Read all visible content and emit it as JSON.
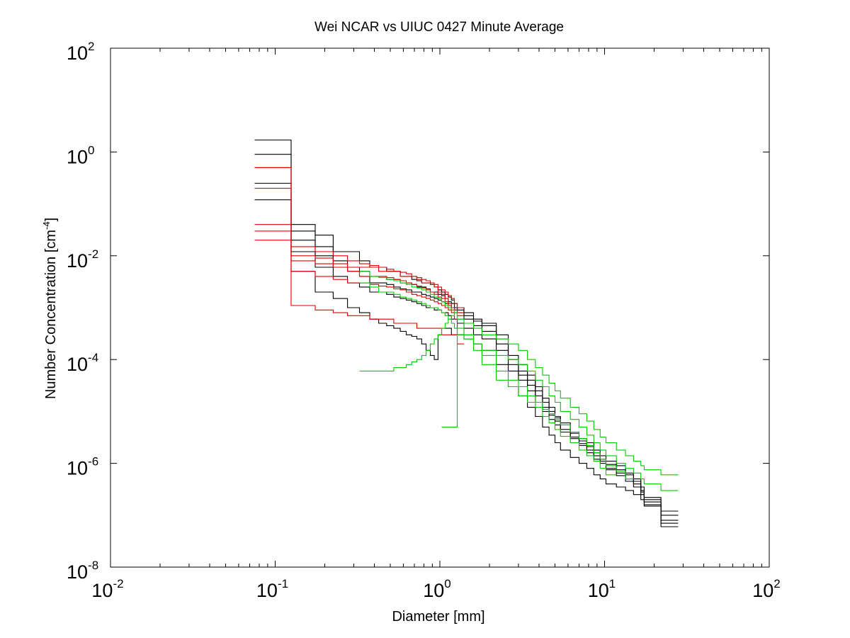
{
  "chart_data": {
    "type": "line",
    "style": "stairs",
    "title": "Wei NCAR vs UIUC 0427 Minute Average",
    "xlabel": "Diameter [mm]",
    "ylabel_base": "Number Concentration [cm",
    "ylabel_exp": "-4",
    "ylabel_end": "]",
    "x_scale": "log",
    "y_scale": "log",
    "xlim": [
      0.01,
      100
    ],
    "ylim": [
      1e-08,
      100
    ],
    "grid": false,
    "x_ticks": [
      {
        "base": "10",
        "exp": "-2"
      },
      {
        "base": "10",
        "exp": "-1"
      },
      {
        "base": "10",
        "exp": "0"
      },
      {
        "base": "10",
        "exp": "1"
      },
      {
        "base": "10",
        "exp": "2"
      }
    ],
    "y_ticks": [
      {
        "base": "10",
        "exp": "-8"
      },
      {
        "base": "10",
        "exp": "-6"
      },
      {
        "base": "10",
        "exp": "-4"
      },
      {
        "base": "10",
        "exp": "-2"
      },
      {
        "base": "10",
        "exp": "0"
      },
      {
        "base": "10",
        "exp": "2"
      }
    ],
    "bin_edges": [
      0.075,
      0.125,
      0.175,
      0.225,
      0.275,
      0.325,
      0.375,
      0.425,
      0.475,
      0.525,
      0.575,
      0.625,
      0.675,
      0.725,
      0.775,
      0.825,
      0.875,
      0.925,
      0.975,
      1.025,
      1.075,
      1.125,
      1.175,
      1.225,
      1.275,
      1.4,
      1.6,
      1.8,
      2.2,
      2.6,
      3.0,
      3.4,
      3.8,
      4.2,
      4.6,
      5.0,
      5.4,
      6.2,
      7.0,
      7.8,
      8.6,
      9.4,
      10.2,
      11.8,
      13.4,
      15.0,
      16.6,
      17.4,
      22.0,
      28.0
    ],
    "series": [
      {
        "color": "#000000",
        "values": [
          1.7,
          0.04,
          0.025,
          0.012,
          0.012,
          0.008,
          0.006,
          0.006,
          0.005,
          0.005,
          0.004,
          0.004,
          0.0035,
          0.0033,
          0.003,
          0.003,
          0.0028,
          0.0025,
          0.0022,
          0.002,
          0.0018,
          0.0016,
          0.0014,
          0.0012,
          0.001,
          0.0008,
          0.0006,
          0.0005,
          0.0003,
          0.00012,
          8e-05,
          5e-05,
          3e-05,
          1.8e-05,
          1.2e-05,
          8e-06,
          6e-06,
          4e-06,
          3e-06,
          2.5e-06,
          1.8e-06,
          1.4e-06,
          1.1e-06,
          9e-07,
          6.5e-07,
          5e-07,
          3.5e-07,
          2.2e-07,
          8e-08
        ]
      },
      {
        "color": "#000000",
        "values": [
          0.9,
          0.03,
          0.015,
          0.008,
          0.006,
          0.005,
          0.004,
          0.004,
          0.0035,
          0.0035,
          0.003,
          0.003,
          0.0028,
          0.0025,
          0.0025,
          0.0023,
          0.002,
          0.002,
          0.0018,
          0.0017,
          0.0015,
          0.0013,
          0.0012,
          0.001,
          0.0009,
          0.0007,
          0.00055,
          0.00045,
          0.00025,
          0.0001,
          6e-05,
          4e-05,
          2.5e-05,
          1.5e-05,
          1e-05,
          7.5e-06,
          5.5e-06,
          3.8e-06,
          2.7e-06,
          2.1e-06,
          1.6e-06,
          1.2e-06,
          9.5e-07,
          7.5e-07,
          6e-07,
          4.5e-07,
          3e-07,
          2e-07,
          7e-08
        ]
      },
      {
        "color": "#000000",
        "values": [
          0.5,
          0.02,
          0.01,
          0.006,
          0.005,
          0.004,
          0.003,
          0.003,
          0.0028,
          0.0025,
          0.0023,
          0.0022,
          0.002,
          0.002,
          0.0018,
          0.0017,
          0.0016,
          0.0015,
          0.0014,
          0.0013,
          0.0012,
          0.0011,
          0.001,
          0.0009,
          0.0008,
          0.0006,
          0.00045,
          0.00035,
          0.0002,
          8e-05,
          5e-05,
          3.2e-05,
          2e-05,
          1.2e-05,
          8.5e-06,
          6.5e-06,
          4.5e-06,
          3.2e-06,
          2.4e-06,
          1.8e-06,
          1.4e-06,
          1.1e-06,
          8e-07,
          6.5e-07,
          5e-07,
          4e-07,
          2.8e-07,
          1.8e-07,
          1.2e-07
        ]
      },
      {
        "color": "#000000",
        "values": [
          0.25,
          0.012,
          0.006,
          0.004,
          0.003,
          0.0025,
          0.002,
          0.002,
          0.0018,
          0.0016,
          0.0015,
          0.0014,
          0.0013,
          0.0012,
          0.0011,
          0.001,
          0.001,
          0.0009,
          0.0009,
          0.0008,
          0.0008,
          0.0007,
          0.0006,
          0.0006,
          0.0005,
          0.0004,
          0.0003,
          0.00025,
          0.00015,
          6e-05,
          4e-05,
          2.5e-05,
          1.5e-05,
          1e-05,
          7e-06,
          5.5e-06,
          4e-06,
          3e-06,
          2.2e-06,
          1.6e-06,
          1.2e-06,
          1e-06,
          7.5e-07,
          5.8e-07,
          4.5e-07,
          3.5e-07,
          2.5e-07,
          1.6e-07,
          1e-07
        ]
      },
      {
        "color": "#000000",
        "values": [
          0.12,
          0.005,
          0.002,
          0.0015,
          0.001,
          0.0008,
          0.0006,
          0.0005,
          0.00045,
          0.0004,
          0.00035,
          0.0003,
          0.00028,
          0.00025,
          0.0002,
          0.00015,
          0.00012,
          0.0001,
          0.0003,
          0.0004,
          0.0004,
          0.0004,
          0.0003,
          0.0003,
          0.0003,
          0.00025,
          0.0002,
          0.00015,
          8e-05,
          3e-05,
          2e-05,
          1.2e-05,
          8e-06,
          5e-06,
          3.5e-06,
          2.5e-06,
          1.8e-06,
          1.3e-06,
          1e-06,
          8e-07,
          6e-07,
          5e-07,
          4e-07,
          3.5e-07,
          3e-07,
          2.5e-07,
          2e-07,
          1.5e-07,
          6e-08
        ]
      },
      {
        "color": "#e00000",
        "values": [
          0.04,
          0.01,
          0.009,
          0.007,
          0.006,
          0.006,
          0.006,
          0.005,
          0.005,
          0.005,
          0.004,
          0.004,
          0.004,
          0.0035,
          0.003,
          0.003,
          0.0028,
          0.0025,
          0.002,
          0.0018,
          0.0015,
          0.0012,
          0.001,
          0.0009,
          0.0008
        ]
      },
      {
        "color": "#e00000",
        "values": [
          0.03,
          0.008,
          0.007,
          0.006,
          0.005,
          0.004,
          0.004,
          0.004,
          0.0038,
          0.0035,
          0.0033,
          0.003,
          0.0028,
          0.0026,
          0.0024,
          0.0022,
          0.002,
          0.0018,
          0.0016,
          0.0015,
          0.0013,
          0.0011,
          0.0009,
          0.0008,
          0.0007
        ]
      },
      {
        "color": "#e00000",
        "values": [
          0.02,
          0.005,
          0.004,
          0.0035,
          0.003,
          0.003,
          0.0028,
          0.0026,
          0.0025,
          0.0023,
          0.0022,
          0.002,
          0.0018,
          0.0017,
          0.0016,
          0.0015,
          0.0014,
          0.0013,
          0.0012,
          0.0011,
          0.001,
          0.0009,
          0.0008,
          0.0006,
          0.0002
        ]
      },
      {
        "color": "#e00000",
        "values": [
          0.2,
          0.0011,
          0.0009,
          0.0008,
          0.0007,
          0.0007,
          0.0006,
          0.0006,
          0.0006,
          0.0005,
          0.0005,
          0.0005,
          0.0005,
          0.0004,
          0.0004,
          0.0004,
          0.0004,
          0.0004,
          0.0004,
          0.0003,
          0.0003,
          0.0003,
          0.0003,
          0.0003,
          0.0003
        ]
      },
      {
        "color": "#e00000",
        "values": [
          0.5,
          0.015,
          0.012,
          0.01,
          0.008,
          0.007,
          0.0065,
          0.006,
          0.0055,
          0.005,
          0.0048,
          0.0045,
          0.004,
          0.0038,
          0.0035,
          0.0033,
          0.003,
          0.0028,
          0.0025,
          0.0022,
          0.002,
          0.0017,
          0.0015,
          0.0012,
          0.001
        ]
      },
      {
        "color": "#00cc00",
        "startIndex": 5,
        "values": [
          0.005,
          0.004,
          0.0038,
          0.0035,
          0.0033,
          0.003,
          0.0028,
          0.0025,
          0.0024,
          0.0022,
          0.002,
          0.0018,
          0.0016,
          0.0015,
          0.0013,
          0.0011,
          0.001,
          0.0009,
          0.0008,
          0.0006,
          0.0005,
          0.0004,
          0.0003,
          0.00025,
          0.0002,
          0.00015,
          0.0001,
          7e-05,
          5e-05,
          3.5e-05,
          2.5e-05,
          1.8e-05,
          1.2e-05,
          9e-06,
          6.5e-06,
          4.5e-06,
          3.2e-06,
          2.5e-06,
          1.8e-06,
          1.4e-06,
          1.1e-06,
          9e-07,
          7.5e-07,
          6e-07
        ]
      },
      {
        "color": "#00cc00",
        "startIndex": 5,
        "values": [
          0.003,
          0.0025,
          0.002,
          0.002,
          0.0018,
          0.0016,
          0.0015,
          0.0014,
          0.0013,
          0.0012,
          0.0011,
          0.001,
          0.001,
          0.0009,
          0.0008,
          0.0007,
          0.0006,
          0.0005,
          0.0004,
          0.0003,
          0.00025,
          0.0002,
          0.00015,
          0.00012,
          0.0001,
          8e-05,
          6e-05,
          4e-05,
          3e-05,
          2e-05,
          1.5e-05,
          1e-05,
          7e-06,
          5e-06,
          3.5e-06,
          2.5e-06,
          1.8e-06,
          1.4e-06,
          1e-06,
          8e-07,
          6.5e-07,
          5e-07,
          4e-07,
          3e-07
        ]
      },
      {
        "color": "#00cc00",
        "startIndex": 5,
        "values": [
          6e-05,
          6e-05,
          6e-05,
          6e-05,
          7e-05,
          7e-05,
          8e-05,
          9e-05,
          0.0001,
          0.00012,
          0.00015,
          0.0002,
          0.00025,
          0.0003,
          0.0004,
          0.0005,
          0.0006,
          0.0007,
          0.0008,
          0.0006,
          0.0003,
          0.00015,
          8e-05,
          4e-05,
          3e-05,
          2e-05,
          1.5e-05,
          1.2e-05,
          8e-06,
          6e-06,
          4.5e-06,
          3.3e-06,
          2.5e-06,
          1.8e-06,
          1.4e-06,
          1.1e-06,
          8e-07,
          6e-07
        ]
      },
      {
        "color": "#00cc00",
        "startIndex": 19,
        "values": [
          5e-06,
          5e-06,
          5e-06,
          5e-06,
          5e-06,
          0.0004,
          0.0003,
          0.0002,
          0.00012,
          6e-05,
          4e-05,
          3e-05,
          2e-05,
          1.5e-05,
          1.1e-05,
          9e-06,
          7e-06,
          5.5e-06,
          4e-06,
          3e-06,
          2.2e-06,
          1.6e-06,
          1.2e-06,
          9e-07,
          7e-07,
          5e-07
        ]
      }
    ]
  }
}
